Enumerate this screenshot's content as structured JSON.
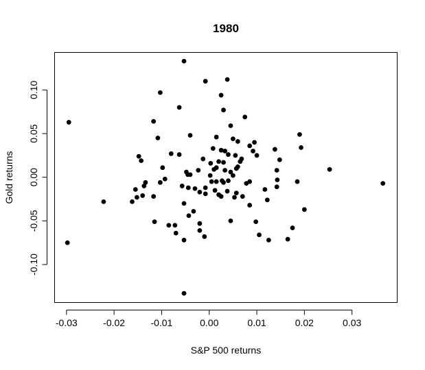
{
  "chart_data": {
    "type": "scatter",
    "title": "1980",
    "xlabel": "S&P 500 returns",
    "ylabel": "Gold returns",
    "xlim": [
      -0.0325,
      0.0395
    ],
    "ylim": [
      -0.1435,
      0.143
    ],
    "xticks": [
      -0.03,
      -0.02,
      -0.01,
      0.0,
      0.01,
      0.02,
      0.03
    ],
    "xtick_labels": [
      "-0.03",
      "-0.02",
      "-0.01",
      "0.00",
      "0.01",
      "0.02",
      "0.03"
    ],
    "yticks": [
      -0.1,
      -0.05,
      0.0,
      0.05,
      0.1
    ],
    "ytick_labels": [
      "-0.10",
      "-0.05",
      "0.00",
      "0.05",
      "0.10"
    ],
    "grid": false,
    "point_color": "#000000",
    "points": [
      {
        "x": -0.0295,
        "y": 0.063
      },
      {
        "x": -0.0298,
        "y": -0.075
      },
      {
        "x": -0.0222,
        "y": -0.028
      },
      {
        "x": -0.0053,
        "y": 0.133
      },
      {
        "x": -0.0053,
        "y": -0.133
      },
      {
        "x": -0.0103,
        "y": 0.097
      },
      {
        "x": -0.0008,
        "y": 0.11
      },
      {
        "x": 0.0038,
        "y": 0.112
      },
      {
        "x": 0.0025,
        "y": 0.094
      },
      {
        "x": -0.0063,
        "y": 0.08
      },
      {
        "x": 0.003,
        "y": 0.077
      },
      {
        "x": 0.0075,
        "y": 0.069
      },
      {
        "x": -0.0117,
        "y": 0.064
      },
      {
        "x": 0.0045,
        "y": 0.059
      },
      {
        "x": -0.004,
        "y": 0.048
      },
      {
        "x": 0.019,
        "y": 0.049
      },
      {
        "x": -0.0108,
        "y": 0.045
      },
      {
        "x": 0.0015,
        "y": 0.046
      },
      {
        "x": 0.005,
        "y": 0.044
      },
      {
        "x": 0.006,
        "y": 0.041
      },
      {
        "x": 0.0095,
        "y": 0.04
      },
      {
        "x": 0.0085,
        "y": 0.036
      },
      {
        "x": 0.0193,
        "y": 0.034
      },
      {
        "x": 0.0138,
        "y": 0.032
      },
      {
        "x": 0.0008,
        "y": 0.033
      },
      {
        "x": 0.0025,
        "y": 0.031
      },
      {
        "x": 0.0033,
        "y": 0.03
      },
      {
        "x": 0.0092,
        "y": 0.03
      },
      {
        "x": -0.0063,
        "y": 0.026
      },
      {
        "x": -0.008,
        "y": 0.027
      },
      {
        "x": 0.004,
        "y": 0.026
      },
      {
        "x": 0.0055,
        "y": 0.025
      },
      {
        "x": 0.01,
        "y": 0.025
      },
      {
        "x": 0.0068,
        "y": 0.021
      },
      {
        "x": -0.0148,
        "y": 0.024
      },
      {
        "x": -0.0143,
        "y": 0.019
      },
      {
        "x": -0.0013,
        "y": 0.021
      },
      {
        "x": 0.002,
        "y": 0.018
      },
      {
        "x": 0.003,
        "y": 0.017
      },
      {
        "x": 0.0065,
        "y": 0.018
      },
      {
        "x": 0.0148,
        "y": 0.02
      },
      {
        "x": 0.0003,
        "y": 0.016
      },
      {
        "x": -0.0098,
        "y": 0.011
      },
      {
        "x": 0.0015,
        "y": 0.011
      },
      {
        "x": 0.0057,
        "y": 0.01
      },
      {
        "x": 0.006,
        "y": 0.012
      },
      {
        "x": 0.001,
        "y": 0.009
      },
      {
        "x": -0.0023,
        "y": 0.008
      },
      {
        "x": 0.0033,
        "y": 0.008
      },
      {
        "x": 0.0045,
        "y": 0.006
      },
      {
        "x": 0.0142,
        "y": 0.008
      },
      {
        "x": 0.0253,
        "y": 0.009
      },
      {
        "x": -0.0048,
        "y": 0.006
      },
      {
        "x": -0.0045,
        "y": 0.003
      },
      {
        "x": -0.004,
        "y": 0.003
      },
      {
        "x": 0.005,
        "y": 0.002
      },
      {
        "x": 0.0002,
        "y": 0.002
      },
      {
        "x": 0.0143,
        "y": -0.003
      },
      {
        "x": -0.0093,
        "y": -0.002
      },
      {
        "x": -0.0103,
        "y": -0.006
      },
      {
        "x": 0.0005,
        "y": -0.005
      },
      {
        "x": 0.0015,
        "y": -0.005
      },
      {
        "x": 0.0027,
        "y": -0.004
      },
      {
        "x": 0.003,
        "y": -0.006
      },
      {
        "x": 0.004,
        "y": -0.004
      },
      {
        "x": 0.0078,
        "y": -0.007
      },
      {
        "x": 0.0085,
        "y": -0.005
      },
      {
        "x": 0.0185,
        "y": -0.005
      },
      {
        "x": 0.0365,
        "y": -0.007
      },
      {
        "x": -0.0134,
        "y": -0.006
      },
      {
        "x": -0.0155,
        "y": -0.014
      },
      {
        "x": -0.0137,
        "y": -0.01
      },
      {
        "x": -0.0057,
        "y": -0.01
      },
      {
        "x": -0.0044,
        "y": -0.012
      },
      {
        "x": -0.003,
        "y": -0.013
      },
      {
        "x": -0.002,
        "y": -0.017
      },
      {
        "x": -0.0008,
        "y": -0.012
      },
      {
        "x": 0.0012,
        "y": -0.015
      },
      {
        "x": 0.002,
        "y": -0.02
      },
      {
        "x": 0.0038,
        "y": -0.016
      },
      {
        "x": 0.0057,
        "y": -0.018
      },
      {
        "x": 0.0117,
        "y": -0.014
      },
      {
        "x": 0.0142,
        "y": -0.011
      },
      {
        "x": -0.014,
        "y": -0.021
      },
      {
        "x": -0.0117,
        "y": -0.022
      },
      {
        "x": -0.0008,
        "y": -0.019
      },
      {
        "x": 0.0025,
        "y": -0.022
      },
      {
        "x": 0.0053,
        "y": -0.023
      },
      {
        "x": 0.007,
        "y": -0.022
      },
      {
        "x": 0.0122,
        "y": -0.026
      },
      {
        "x": -0.0152,
        "y": -0.023
      },
      {
        "x": -0.0162,
        "y": -0.028
      },
      {
        "x": -0.0053,
        "y": -0.03
      },
      {
        "x": 0.0085,
        "y": -0.032
      },
      {
        "x": -0.0033,
        "y": -0.039
      },
      {
        "x": 0.02,
        "y": -0.037
      },
      {
        "x": -0.0043,
        "y": -0.044
      },
      {
        "x": -0.0115,
        "y": -0.051
      },
      {
        "x": 0.0045,
        "y": -0.05
      },
      {
        "x": 0.0098,
        "y": -0.051
      },
      {
        "x": -0.0085,
        "y": -0.055
      },
      {
        "x": -0.0072,
        "y": -0.055
      },
      {
        "x": -0.002,
        "y": -0.053
      },
      {
        "x": 0.0175,
        "y": -0.058
      },
      {
        "x": -0.002,
        "y": -0.061
      },
      {
        "x": -0.007,
        "y": -0.064
      },
      {
        "x": -0.001,
        "y": -0.068
      },
      {
        "x": 0.0105,
        "y": -0.066
      },
      {
        "x": -0.0053,
        "y": -0.072
      },
      {
        "x": 0.0125,
        "y": -0.072
      },
      {
        "x": 0.0165,
        "y": -0.071
      }
    ]
  }
}
